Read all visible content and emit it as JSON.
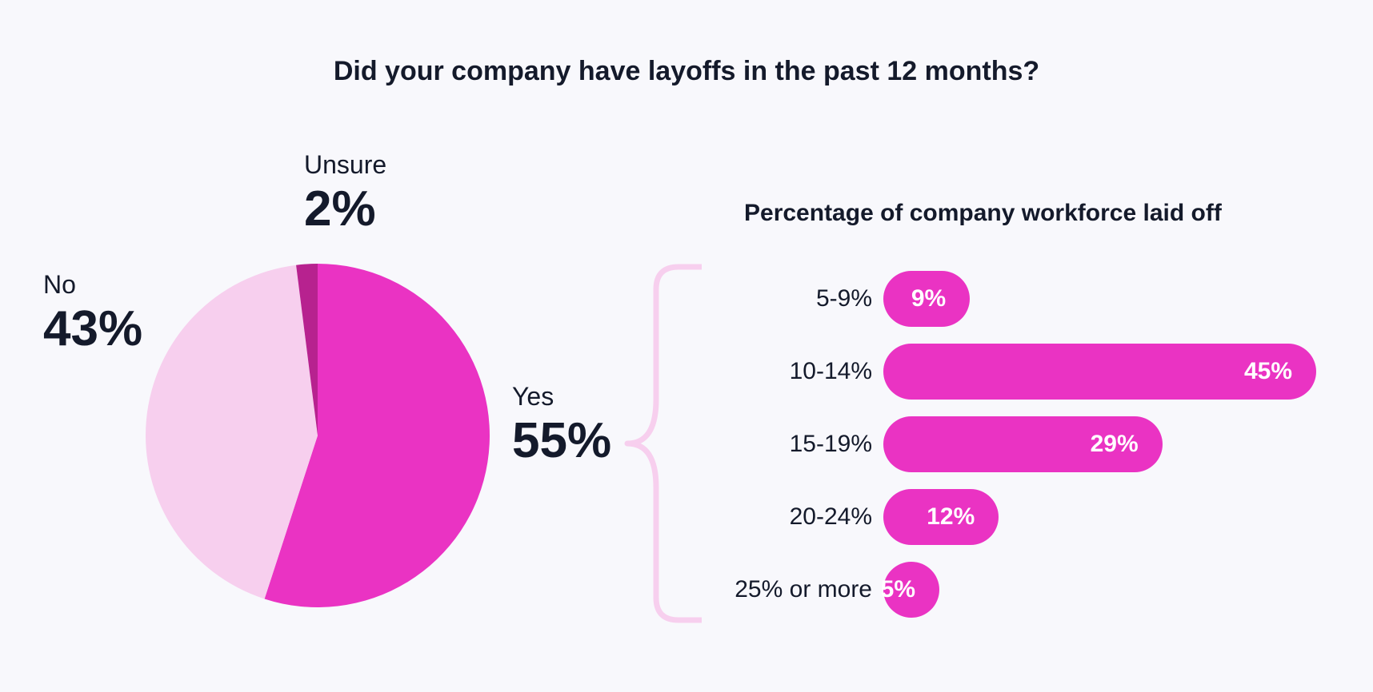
{
  "title": "Did your company have layoffs in the past 12 months?",
  "colors": {
    "yes": "#ea33c3",
    "no": "#f7cfee",
    "unsure": "#b7228f",
    "bar": "#ea33c3",
    "brace": "#f7cfee",
    "text": "#141a2b",
    "background": "#f8f8fc"
  },
  "chart_data": [
    {
      "type": "pie",
      "title": "Did your company have layoffs in the past 12 months?",
      "slices": [
        {
          "label": "Yes",
          "value": 55,
          "value_label": "55%"
        },
        {
          "label": "No",
          "value": 43,
          "value_label": "43%"
        },
        {
          "label": "Unsure",
          "value": 2,
          "value_label": "2%"
        }
      ]
    },
    {
      "type": "bar",
      "orientation": "horizontal",
      "title": "Percentage of company workforce laid off",
      "categories": [
        "5-9%",
        "10-14%",
        "15-19%",
        "20-24%",
        "25% or more"
      ],
      "values": [
        9,
        45,
        29,
        12,
        5
      ],
      "value_labels": [
        "9%",
        "45%",
        "29%",
        "12%",
        "5%"
      ],
      "xlim": [
        0,
        45
      ]
    }
  ]
}
